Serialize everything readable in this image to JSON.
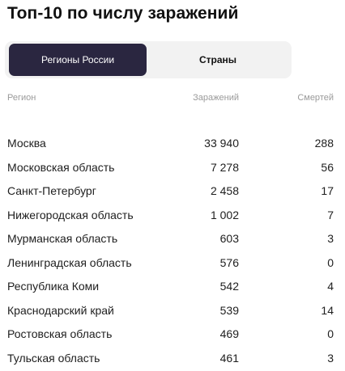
{
  "title": "Топ-10 по числу заражений",
  "tabs": [
    {
      "label": "Регионы России",
      "active": true
    },
    {
      "label": "Страны",
      "active": false
    }
  ],
  "table": {
    "headers": {
      "region": "Регион",
      "cases": "Заражений",
      "deaths": "Смертей"
    },
    "rows": [
      {
        "region": "Москва",
        "cases": "33 940",
        "deaths": "288"
      },
      {
        "region": "Московская область",
        "cases": "7 278",
        "deaths": "56"
      },
      {
        "region": "Санкт-Петербург",
        "cases": "2 458",
        "deaths": "17"
      },
      {
        "region": "Нижегородская область",
        "cases": "1 002",
        "deaths": "7"
      },
      {
        "region": "Мурманская область",
        "cases": "603",
        "deaths": "3"
      },
      {
        "region": "Ленинградская область",
        "cases": "576",
        "deaths": "0"
      },
      {
        "region": "Республика Коми",
        "cases": "542",
        "deaths": "4"
      },
      {
        "region": "Краснодарский край",
        "cases": "539",
        "deaths": "14"
      },
      {
        "region": "Ростовская область",
        "cases": "469",
        "deaths": "0"
      },
      {
        "region": "Тульская область",
        "cases": "461",
        "deaths": "3"
      }
    ]
  },
  "colors": {
    "active_tab": "#2a2640",
    "tab_bar": "#f2f2f2",
    "header_text": "#9a9a9a"
  }
}
